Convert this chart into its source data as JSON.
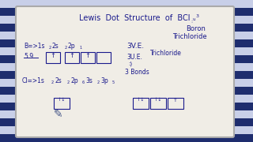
{
  "bg_color": "#2a3a7a",
  "whiteboard_color": "#f0ede6",
  "board_edge_color": "#aaaaaa",
  "text_color": "#1a1a8c",
  "stripe_dark": "#1e2d6e",
  "stripe_light": "#c8cfe8",
  "title_text": "Lewis  Dot  Structure  of  BCl",
  "title_3": "3",
  "boron_smiley": ":  :",
  "boron_label": "Boron",
  "trichloride_label": "Trichloride",
  "ve_label": "3V.E.",
  "ue_label": "3U.E.",
  "smiley": ":)",
  "bonds_label": "3 Bonds"
}
